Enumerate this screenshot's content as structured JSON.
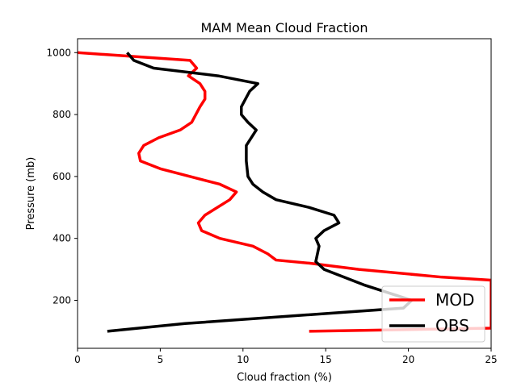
{
  "chart_data": {
    "type": "line",
    "title": "MAM Mean Cloud Fraction",
    "xlabel": "Cloud fraction (%)",
    "ylabel": "Pressure (mb)",
    "xlim": [
      0,
      25
    ],
    "ylim": [
      1045,
      45
    ],
    "y_inverted": true,
    "xticks": [
      "0",
      "5",
      "10",
      "15",
      "20",
      "25"
    ],
    "yticks": [
      "200",
      "400",
      "600",
      "800",
      "1000"
    ],
    "grid": false,
    "legend_position": "lower-right",
    "series": [
      {
        "name": "MOD",
        "color": "#ff0000",
        "points": [
          [
            14.0,
            100
          ],
          [
            25.0,
            110
          ],
          [
            25.0,
            265
          ],
          [
            22.0,
            275
          ],
          [
            17.0,
            300
          ],
          [
            14.0,
            320
          ],
          [
            12.0,
            330
          ],
          [
            11.5,
            350
          ],
          [
            10.6,
            375
          ],
          [
            8.6,
            400
          ],
          [
            7.5,
            425
          ],
          [
            7.3,
            450
          ],
          [
            7.7,
            475
          ],
          [
            9.2,
            525
          ],
          [
            9.6,
            550
          ],
          [
            8.6,
            575
          ],
          [
            5.0,
            625
          ],
          [
            3.8,
            650
          ],
          [
            3.7,
            675
          ],
          [
            4.0,
            700
          ],
          [
            4.9,
            725
          ],
          [
            6.2,
            750
          ],
          [
            6.9,
            775
          ],
          [
            7.4,
            825
          ],
          [
            7.7,
            850
          ],
          [
            7.7,
            875
          ],
          [
            7.4,
            900
          ],
          [
            6.7,
            925
          ],
          [
            7.2,
            950
          ],
          [
            6.8,
            975
          ],
          [
            0.0,
            1000
          ]
        ]
      },
      {
        "name": "OBS",
        "color": "#000000",
        "points": [
          [
            1.8,
            100
          ],
          [
            6.5,
            125
          ],
          [
            19.7,
            175
          ],
          [
            20.2,
            200
          ],
          [
            17.3,
            250
          ],
          [
            14.9,
            300
          ],
          [
            14.4,
            325
          ],
          [
            14.6,
            375
          ],
          [
            14.4,
            400
          ],
          [
            14.9,
            425
          ],
          [
            15.8,
            450
          ],
          [
            15.5,
            475
          ],
          [
            14.0,
            500
          ],
          [
            12.0,
            525
          ],
          [
            11.2,
            550
          ],
          [
            10.6,
            575
          ],
          [
            10.3,
            600
          ],
          [
            10.2,
            650
          ],
          [
            10.2,
            700
          ],
          [
            10.8,
            750
          ],
          [
            10.3,
            775
          ],
          [
            9.9,
            800
          ],
          [
            9.9,
            825
          ],
          [
            10.4,
            875
          ],
          [
            10.9,
            900
          ],
          [
            8.5,
            925
          ],
          [
            4.6,
            950
          ],
          [
            3.4,
            975
          ],
          [
            3.0,
            1000
          ]
        ]
      }
    ]
  }
}
